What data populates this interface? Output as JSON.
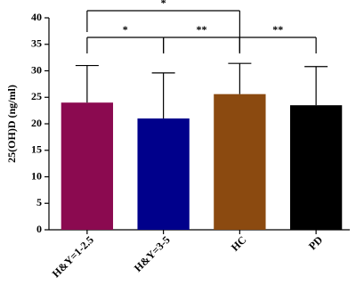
{
  "chart_data": {
    "type": "bar",
    "y_label": "25(OH)D  (ng/ml)",
    "categories": [
      "H&Y=1-2.5",
      "H&Y=3-5",
      "HC",
      "PD"
    ],
    "values": [
      24,
      21,
      25.6,
      23.5
    ],
    "errors": [
      7,
      8.6,
      5.8,
      7.3
    ],
    "colors": [
      "#8b0a50",
      "#00008b",
      "#8b4a10",
      "#000000"
    ],
    "ylim": [
      0,
      40
    ],
    "yticks": [
      0,
      5,
      10,
      15,
      20,
      25,
      30,
      35,
      40
    ],
    "significance": [
      {
        "from": 0,
        "to": 2,
        "label": "*"
      },
      {
        "from": 0,
        "to": 1,
        "label": "*"
      },
      {
        "from": 1,
        "to": 2,
        "label": "**"
      },
      {
        "from": 2,
        "to": 3,
        "label": "**"
      }
    ]
  }
}
